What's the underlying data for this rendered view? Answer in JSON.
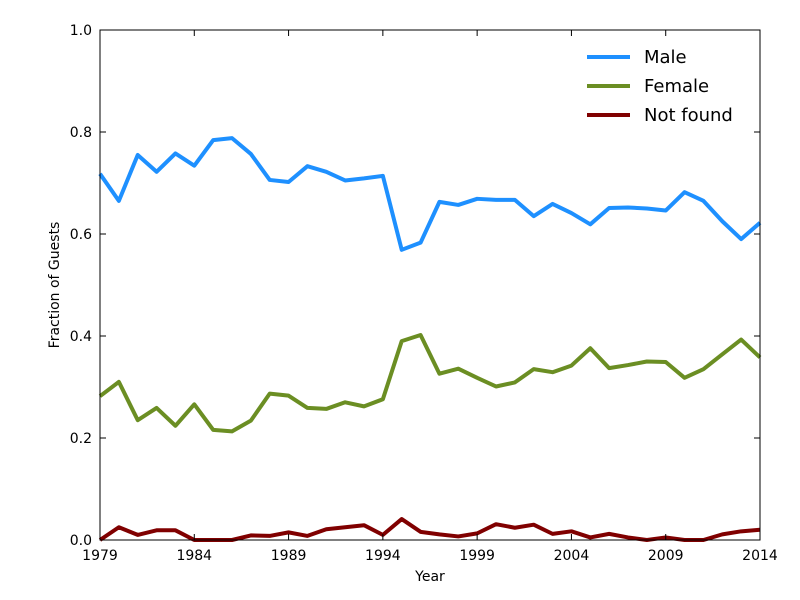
{
  "chart_data": {
    "type": "line",
    "title": "",
    "xlabel": "Year",
    "ylabel": "Fraction of Guests",
    "xlim": [
      1979,
      2014
    ],
    "ylim": [
      0.0,
      1.0
    ],
    "xticks": [
      1979,
      1984,
      1989,
      1994,
      1999,
      2004,
      2009,
      2014
    ],
    "yticks": [
      0.0,
      0.2,
      0.4,
      0.6,
      0.8,
      1.0
    ],
    "xtick_labels": [
      "1979",
      "1984",
      "1989",
      "1994",
      "1999",
      "2004",
      "2009",
      "2014"
    ],
    "ytick_labels": [
      "0.0",
      "0.2",
      "0.4",
      "0.6",
      "0.8",
      "1.0"
    ],
    "grid": false,
    "legend": {
      "placement": "top-right",
      "frame": false
    },
    "x": [
      1979,
      1980,
      1981,
      1982,
      1983,
      1984,
      1985,
      1986,
      1987,
      1988,
      1989,
      1990,
      1991,
      1992,
      1993,
      1994,
      1995,
      1996,
      1997,
      1998,
      1999,
      2000,
      2001,
      2002,
      2003,
      2004,
      2005,
      2006,
      2007,
      2008,
      2009,
      2010,
      2011,
      2012,
      2013,
      2014
    ],
    "series": [
      {
        "name": "Male",
        "color": "#1e90ff",
        "values": [
          0.718,
          0.665,
          0.755,
          0.722,
          0.758,
          0.734,
          0.784,
          0.788,
          0.757,
          0.706,
          0.702,
          0.733,
          0.722,
          0.705,
          0.709,
          0.714,
          0.569,
          0.583,
          0.663,
          0.657,
          0.669,
          0.667,
          0.667,
          0.635,
          0.659,
          0.641,
          0.619,
          0.651,
          0.652,
          0.65,
          0.646,
          0.682,
          0.665,
          0.625,
          0.59,
          0.622
        ]
      },
      {
        "name": "Female",
        "color": "#6b8e23",
        "values": [
          0.282,
          0.31,
          0.235,
          0.259,
          0.224,
          0.266,
          0.216,
          0.213,
          0.234,
          0.287,
          0.283,
          0.259,
          0.257,
          0.27,
          0.262,
          0.276,
          0.39,
          0.402,
          0.326,
          0.336,
          0.318,
          0.301,
          0.309,
          0.335,
          0.329,
          0.342,
          0.376,
          0.337,
          0.343,
          0.35,
          0.349,
          0.318,
          0.335,
          0.364,
          0.393,
          0.358
        ]
      },
      {
        "name": "Not found",
        "color": "#800000",
        "values": [
          0.0,
          0.025,
          0.01,
          0.019,
          0.019,
          0.0,
          0.0,
          0.0,
          0.009,
          0.008,
          0.015,
          0.008,
          0.021,
          0.025,
          0.029,
          0.01,
          0.041,
          0.016,
          0.011,
          0.007,
          0.013,
          0.031,
          0.024,
          0.03,
          0.012,
          0.017,
          0.005,
          0.012,
          0.005,
          0.0,
          0.005,
          0.0,
          0.0,
          0.011,
          0.017,
          0.02
        ]
      }
    ]
  }
}
